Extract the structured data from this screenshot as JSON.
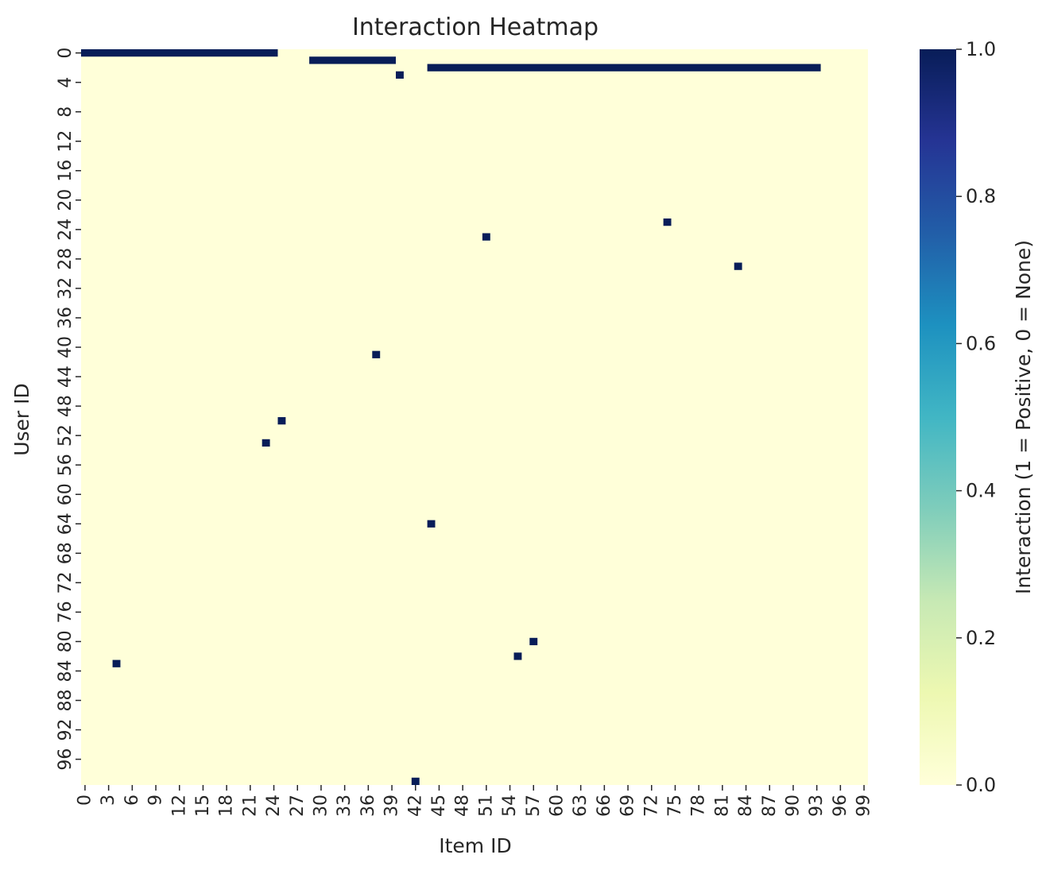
{
  "chart_data": {
    "type": "heatmap",
    "title": "Interaction Heatmap",
    "xlabel": "Item ID",
    "ylabel": "User ID",
    "n_cols": 100,
    "n_rows": 100,
    "x_ticks": [
      0,
      3,
      6,
      9,
      12,
      15,
      18,
      21,
      24,
      27,
      30,
      33,
      36,
      39,
      42,
      45,
      48,
      51,
      54,
      57,
      60,
      63,
      66,
      69,
      72,
      75,
      78,
      81,
      84,
      87,
      90,
      93,
      96,
      99
    ],
    "y_ticks": [
      0,
      4,
      8,
      12,
      16,
      20,
      24,
      28,
      32,
      36,
      40,
      44,
      48,
      52,
      56,
      60,
      64,
      68,
      72,
      76,
      80,
      84,
      88,
      92,
      96
    ],
    "colorbar": {
      "label": "Interaction (1 = Positive, 0 = None)",
      "min": 0.0,
      "max": 1.0,
      "ticks": [
        "0.0",
        "0.2",
        "0.4",
        "0.6",
        "0.8",
        "1.0"
      ],
      "colormap": "YlGnBu",
      "colors": [
        "#ffffd9",
        "#edf8b1",
        "#c7e9b4",
        "#7fcdbb",
        "#41b6c4",
        "#1d91c0",
        "#225ea8",
        "#253494",
        "#081d58"
      ]
    },
    "positive_runs": [
      {
        "row": 0,
        "col_start": 0,
        "col_end": 24
      },
      {
        "row": 1,
        "col_start": 29,
        "col_end": 39
      },
      {
        "row": 2,
        "col_start": 44,
        "col_end": 93
      }
    ],
    "positive_cells": [
      {
        "row": 3,
        "col": 40
      },
      {
        "row": 23,
        "col": 74
      },
      {
        "row": 25,
        "col": 51
      },
      {
        "row": 29,
        "col": 83
      },
      {
        "row": 41,
        "col": 37
      },
      {
        "row": 50,
        "col": 25
      },
      {
        "row": 53,
        "col": 23
      },
      {
        "row": 64,
        "col": 44
      },
      {
        "row": 80,
        "col": 57
      },
      {
        "row": 82,
        "col": 55
      },
      {
        "row": 83,
        "col": 4
      },
      {
        "row": 99,
        "col": 42
      }
    ]
  }
}
